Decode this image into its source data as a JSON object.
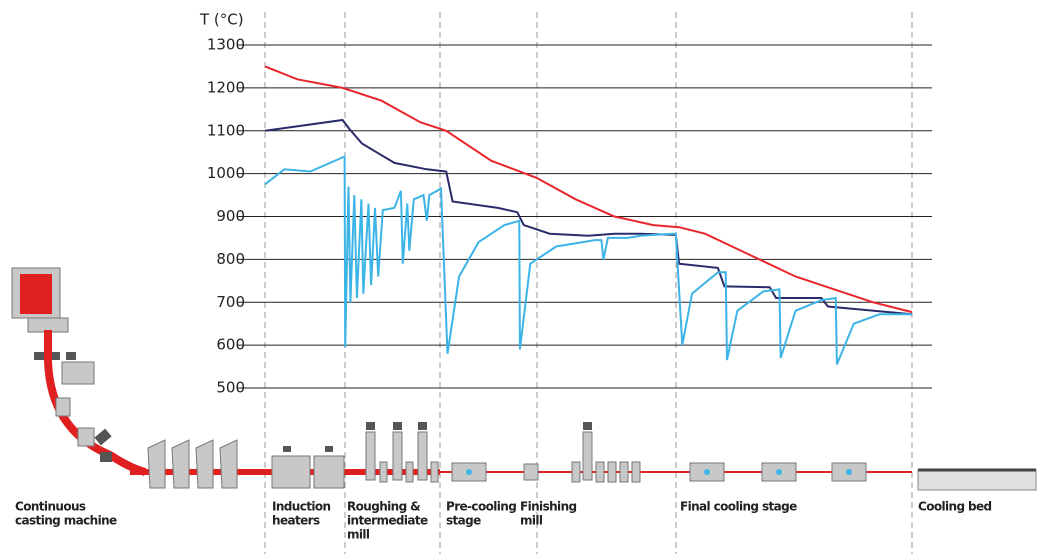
{
  "chart_data": {
    "type": "line",
    "y_label": "T (°C)",
    "ylim": [
      500,
      1300
    ],
    "yticks": [
      500,
      600,
      700,
      800,
      900,
      1000,
      1100,
      1200,
      1300
    ],
    "xlim": [
      0,
      100
    ],
    "grid": true,
    "series": [
      {
        "color": "#e8262b",
        "x": [
          0,
          5,
          12,
          18,
          24,
          28,
          35,
          42,
          48,
          54,
          60,
          64,
          68,
          75,
          82,
          88,
          94,
          100
        ],
        "values": [
          1250,
          1220,
          1200,
          1170,
          1120,
          1100,
          1030,
          990,
          940,
          900,
          880,
          875,
          860,
          810,
          760,
          730,
          700,
          677
        ]
      },
      {
        "color": "#2b2b6b",
        "x": [
          0,
          12,
          13,
          15,
          20,
          25,
          28,
          29,
          36,
          39,
          40,
          44,
          50,
          54,
          58,
          63.5,
          64,
          70,
          71,
          78,
          79,
          86,
          87,
          100
        ],
        "values": [
          1100,
          1125,
          1105,
          1070,
          1025,
          1010,
          1005,
          935,
          920,
          910,
          880,
          860,
          855,
          860,
          860,
          857,
          790,
          780,
          737,
          735,
          710,
          710,
          690,
          672
        ]
      },
      {
        "color": "#3cb4e6",
        "x": [
          0,
          3,
          7,
          12.3,
          12.4,
          12.9,
          13.2,
          13.8,
          14.2,
          14.9,
          15.2,
          16,
          16.4,
          17,
          17.5,
          18.2,
          20,
          21,
          21.3,
          22,
          22.3,
          23,
          24.5,
          25,
          25.4,
          27.2,
          28.2,
          30,
          33,
          37,
          39.3,
          39.4,
          41,
          45,
          51,
          52,
          52.3,
          53,
          56,
          58,
          63,
          63.5,
          64.5,
          66,
          70,
          71.2,
          71.4,
          73,
          77,
          79.5,
          79.7,
          82,
          86,
          88.2,
          88.4,
          91,
          95,
          100
        ],
        "values": [
          975,
          1010,
          1005,
          1040,
          595,
          970,
          700,
          950,
          710,
          940,
          720,
          930,
          740,
          920,
          760,
          915,
          920,
          960,
          790,
          930,
          820,
          940,
          950,
          890,
          950,
          965,
          580,
          760,
          840,
          880,
          890,
          590,
          790,
          830,
          845,
          845,
          800,
          850,
          850,
          855,
          860,
          860,
          600,
          720,
          770,
          770,
          565,
          680,
          725,
          730,
          570,
          680,
          705,
          710,
          555,
          650,
          672,
          672
        ]
      }
    ],
    "stages": [
      {
        "lines": [
          "Continuous",
          "casting machine"
        ]
      },
      {
        "lines": [
          "Induction",
          "heaters"
        ]
      },
      {
        "lines": [
          "Roughing &",
          "intermediate",
          "mill"
        ]
      },
      {
        "lines": [
          "Pre-cooling",
          "stage"
        ]
      },
      {
        "lines": [
          "Finishing",
          "mill"
        ]
      },
      {
        "lines": [
          "Final cooling stage"
        ]
      },
      {
        "lines": [
          "Cooling bed"
        ]
      }
    ]
  }
}
